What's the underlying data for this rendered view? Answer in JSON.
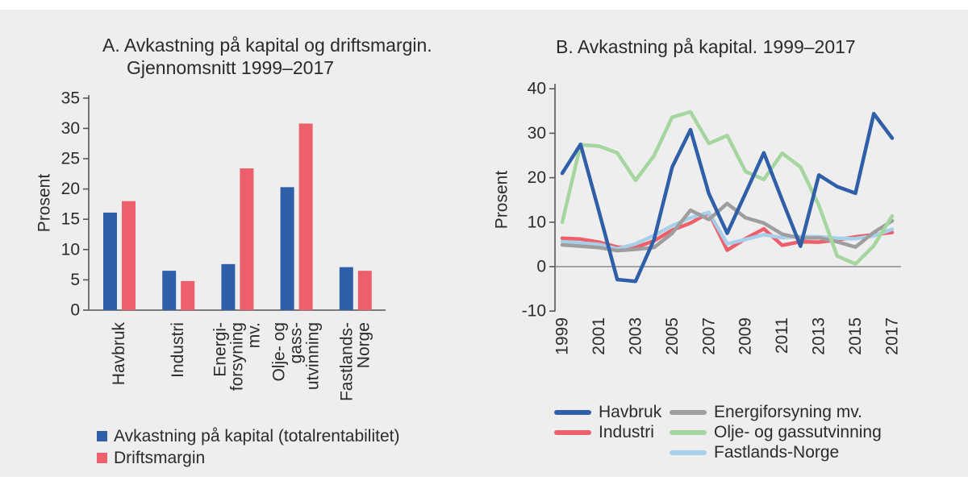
{
  "colors": {
    "background": "#efeeee",
    "text": "#2b2b2b",
    "axis": "#555555",
    "zero_line": "#8a8a8a",
    "blue": "#2f5fa8",
    "red": "#ed5f6a",
    "gray": "#9e9e9e",
    "green": "#a5d69f",
    "light_blue": "#a6d0ea"
  },
  "panel_a": {
    "title_line1": "A. Avkastning på kapital og driftsmargin.",
    "title_line2": "Gjennomsnitt 1999–2017",
    "ylabel": "Prosent"
  },
  "panel_b": {
    "title": "B. Avkastning på kapital. 1999–2017",
    "ylabel": "Prosent"
  },
  "chart_data": [
    {
      "type": "bar",
      "panel": "A",
      "title": "A. Avkastning på kapital og driftsmargin. Gjennomsnitt 1999–2017",
      "ylabel": "Prosent",
      "ylim": [
        0,
        35
      ],
      "yticks": [
        0,
        5,
        10,
        15,
        20,
        25,
        30,
        35
      ],
      "grid": false,
      "legend_position": "bottom-left",
      "categories": [
        "Havbruk",
        "Industri",
        "Energiforsyning mv.",
        "Olje- og gassutvinning",
        "Fastlands-Norge"
      ],
      "category_label_lines": [
        [
          "Havbruk"
        ],
        [
          "Industri"
        ],
        [
          "Energi-",
          "forsyning",
          "mv."
        ],
        [
          "Olje- og",
          "gass-",
          "utvinning"
        ],
        [
          "Fastlands-",
          "Norge"
        ]
      ],
      "series": [
        {
          "name": "Avkastning på kapital (totalrentabilitet)",
          "color_key": "blue",
          "values": [
            16.1,
            6.5,
            7.6,
            20.3,
            7.1
          ]
        },
        {
          "name": "Driftsmargin",
          "color_key": "red",
          "values": [
            18.0,
            4.8,
            23.4,
            30.8,
            6.5
          ]
        }
      ]
    },
    {
      "type": "line",
      "panel": "B",
      "title": "B. Avkastning på kapital. 1999–2017",
      "ylabel": "Prosent",
      "ylim": [
        -10,
        40
      ],
      "yticks": [
        -10,
        0,
        10,
        20,
        30,
        40
      ],
      "zero_line": true,
      "grid": false,
      "legend_position": "bottom",
      "x": [
        1999,
        2000,
        2001,
        2002,
        2003,
        2004,
        2005,
        2006,
        2007,
        2008,
        2009,
        2010,
        2011,
        2012,
        2013,
        2014,
        2015,
        2016,
        2017
      ],
      "xticks": [
        1999,
        2001,
        2003,
        2005,
        2007,
        2009,
        2011,
        2013,
        2015,
        2017
      ],
      "series": [
        {
          "name": "Havbruk",
          "color_key": "blue",
          "values": [
            21.0,
            27.5,
            12.5,
            -2.9,
            -3.3,
            6.0,
            22.4,
            30.8,
            16.4,
            7.5,
            16.5,
            25.6,
            15.0,
            4.6,
            20.6,
            18.0,
            16.5,
            34.4,
            28.9
          ]
        },
        {
          "name": "Industri",
          "color_key": "red",
          "values": [
            6.4,
            6.2,
            5.5,
            4.4,
            4.3,
            5.8,
            8.2,
            9.8,
            12.1,
            3.7,
            6.3,
            8.5,
            4.8,
            5.6,
            5.5,
            6.0,
            6.7,
            7.2,
            7.7
          ]
        },
        {
          "name": "Energiforsyning mv.",
          "color_key": "gray",
          "values": [
            4.9,
            4.6,
            4.3,
            3.6,
            3.9,
            4.3,
            7.5,
            12.7,
            10.6,
            14.2,
            11.0,
            9.8,
            7.3,
            6.4,
            6.5,
            5.6,
            4.4,
            7.7,
            10.3
          ]
        },
        {
          "name": "Olje- og gassutvinning",
          "color_key": "green",
          "values": [
            10.0,
            27.4,
            27.1,
            25.6,
            19.4,
            24.9,
            33.6,
            34.8,
            27.7,
            29.5,
            21.4,
            19.6,
            25.5,
            22.4,
            13.8,
            2.4,
            0.6,
            4.7,
            11.4
          ]
        },
        {
          "name": "Fastlands-Norge",
          "color_key": "light_blue",
          "values": [
            5.6,
            5.3,
            5.0,
            4.0,
            5.1,
            7.0,
            9.2,
            11.0,
            12.2,
            5.1,
            6.1,
            7.2,
            6.5,
            6.8,
            6.7,
            6.4,
            6.3,
            6.9,
            8.4
          ]
        }
      ],
      "draw_order": [
        1,
        4,
        2,
        3,
        0
      ],
      "legend_columns": [
        [
          "Havbruk",
          "Industri"
        ],
        [
          "Energiforsyning mv.",
          "Olje- og gassutvinning",
          "Fastlands-Norge"
        ]
      ]
    }
  ]
}
